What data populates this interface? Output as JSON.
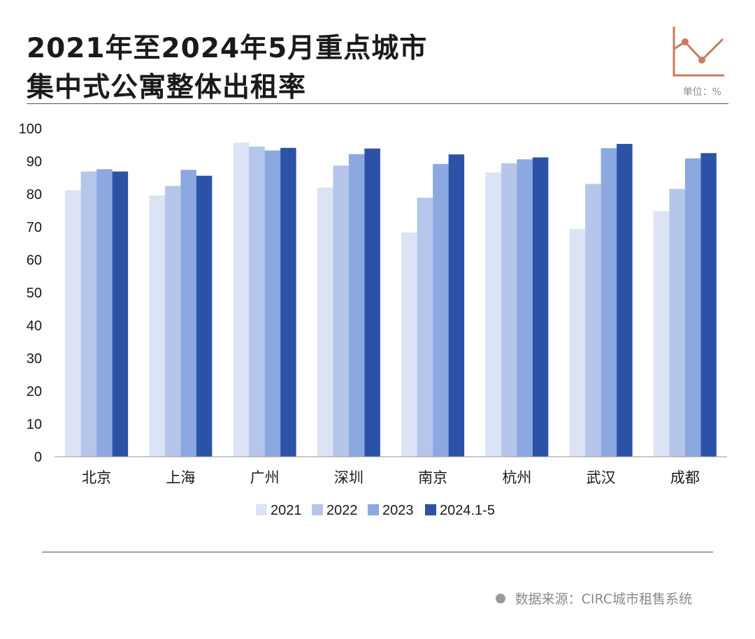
{
  "header": {
    "title_line1": "2021年至2024年5月重点城市",
    "title_line2": "集中式公寓整体出租率",
    "unit": "单位：%",
    "unit_icon": "line-chart-icon"
  },
  "footer": {
    "source": "数据来源：CIRC城市租售系统"
  },
  "colors": {
    "s2021": "#dce3f4",
    "s2022": "#b6c6ea",
    "s2023": "#8ca8e0",
    "s2024": "#2b52a6",
    "icon": "#c97a5f"
  },
  "chart_data": {
    "type": "bar",
    "categories": [
      "北京",
      "上海",
      "广州",
      "深圳",
      "南京",
      "杭州",
      "武汉",
      "成都"
    ],
    "series": [
      {
        "name": "2021",
        "values": [
          81.2,
          79.6,
          95.7,
          82.0,
          68.3,
          86.6,
          69.4,
          74.8
        ]
      },
      {
        "name": "2022",
        "values": [
          86.9,
          82.5,
          94.5,
          88.7,
          78.9,
          89.4,
          83.1,
          81.6
        ]
      },
      {
        "name": "2023",
        "values": [
          87.6,
          87.4,
          93.3,
          92.2,
          89.2,
          90.6,
          94.0,
          90.9
        ]
      },
      {
        "name": "2024.1-5",
        "values": [
          86.9,
          85.6,
          94.1,
          93.9,
          92.1,
          91.2,
          95.3,
          92.5
        ]
      }
    ],
    "yticks": [
      0,
      10,
      20,
      30,
      40,
      50,
      60,
      70,
      80,
      90,
      100
    ],
    "ylim": [
      0,
      100
    ],
    "legend_position": "bottom-center",
    "grid": false
  }
}
